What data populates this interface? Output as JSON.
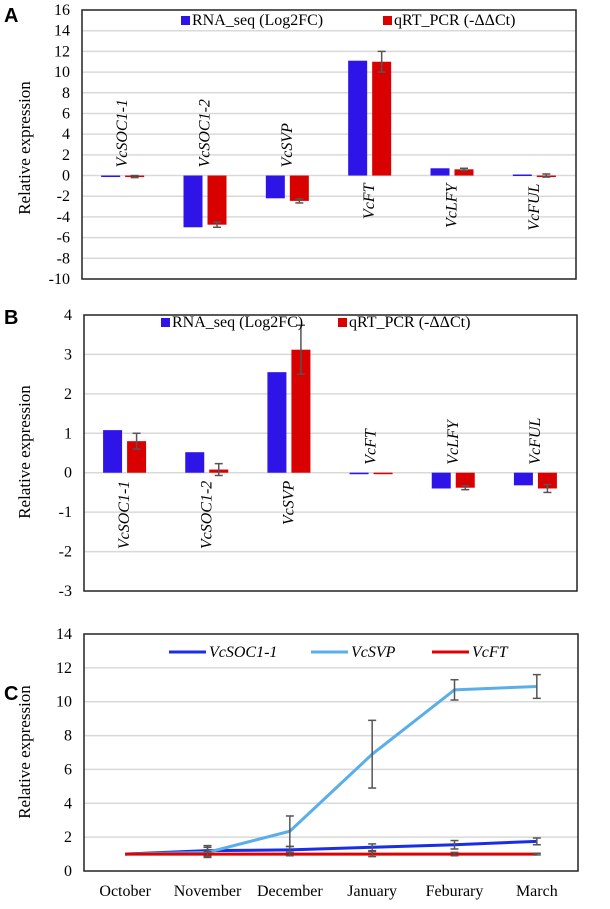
{
  "colors": {
    "rna_seq": "#2f14e8",
    "qrt_pcr": "#d90000",
    "soc1": "#1a2ee6",
    "svp": "#5aaeea",
    "ft": "#e00000",
    "error_bar": "#555555",
    "grid": "#d9d9d9"
  },
  "chart_data": [
    {
      "panel": "A",
      "type": "bar",
      "ylabel": "Relative expression",
      "ylim": [
        -10,
        16
      ],
      "yticks": [
        16,
        14,
        12,
        10,
        8,
        6,
        4,
        2,
        0,
        -2,
        -4,
        -6,
        -8,
        -10
      ],
      "grid": true,
      "legend": "top",
      "categories": [
        "VcSOC1-1",
        "VcSOC1-2",
        "VcSVP",
        "VcFT",
        "VcLFY",
        "VcFUL"
      ],
      "series": [
        {
          "name": "RNA_seq (Log2FC)",
          "values": [
            -0.1,
            -5.0,
            -2.2,
            11.1,
            0.7,
            0.1
          ],
          "errors": null
        },
        {
          "name": "qRT_PCR (-ΔΔCt)",
          "values": [
            -0.1,
            -4.75,
            -2.45,
            11.0,
            0.6,
            0.0
          ],
          "errors": [
            0.1,
            0.25,
            0.2,
            1.0,
            0.1,
            0.15
          ]
        }
      ]
    },
    {
      "panel": "B",
      "type": "bar",
      "ylabel": "Relative expression",
      "ylim": [
        -3,
        4
      ],
      "yticks": [
        4,
        3,
        2,
        1,
        0,
        -1,
        -2,
        -3
      ],
      "grid": true,
      "legend": "top",
      "categories": [
        "VcSOC1-1",
        "VcSOC1-2",
        "VcSVP",
        "VcFT",
        "VcLFY",
        "VcFUL"
      ],
      "series": [
        {
          "name": "RNA_seq (Log2FC)",
          "values": [
            1.08,
            0.52,
            2.55,
            0.0,
            -0.4,
            -0.32
          ],
          "errors": null
        },
        {
          "name": "qRT_PCR (-ΔΔCt)",
          "values": [
            0.8,
            0.08,
            3.12,
            0.0,
            -0.38,
            -0.4
          ],
          "errors": [
            0.2,
            0.15,
            0.62,
            0.0,
            0.05,
            0.1
          ]
        }
      ]
    },
    {
      "panel": "C",
      "type": "line",
      "ylabel": "Relative expression",
      "ylim": [
        0,
        14
      ],
      "yticks": [
        14,
        12,
        10,
        8,
        6,
        4,
        2,
        0
      ],
      "grid": true,
      "legend": "top",
      "categories": [
        "October",
        "November",
        "December",
        "January",
        "Feburary",
        "March"
      ],
      "series": [
        {
          "name": "VcSOC1-1",
          "values": [
            1.0,
            1.2,
            1.25,
            1.4,
            1.55,
            1.75
          ],
          "errors": [
            0,
            0.3,
            0.2,
            0.2,
            0.25,
            0.2
          ]
        },
        {
          "name": "VcSVP",
          "values": [
            1.0,
            1.1,
            2.35,
            6.9,
            10.7,
            10.9
          ],
          "errors": [
            0,
            0.3,
            0.9,
            2.0,
            0.6,
            0.7
          ]
        },
        {
          "name": "VcFT",
          "values": [
            1.0,
            1.0,
            1.0,
            1.0,
            1.0,
            1.0
          ],
          "errors": [
            0,
            0.15,
            0.1,
            0.15,
            0.1,
            0.05
          ]
        }
      ]
    }
  ]
}
